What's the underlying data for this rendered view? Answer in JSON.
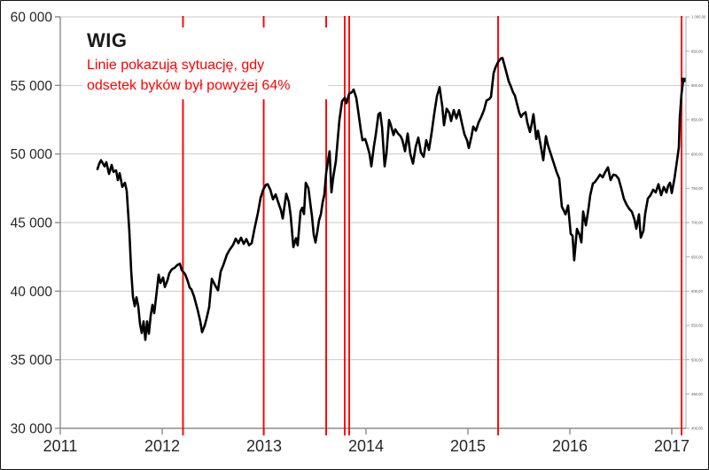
{
  "annotation": {
    "title": "WIG",
    "line1": "Linie pokazują sytuację, gdy",
    "line2": "odsetek byków był powyżej 64%"
  },
  "colors": {
    "series": "#000000",
    "signal": "#FF0000",
    "grid": "#C9C9C9",
    "axis": "#8C8C8C",
    "tick_text": "#262626",
    "right_axis": "#ABABAB",
    "right_axis_text": "#595959",
    "annotation_text": "#FF0000"
  },
  "chart_data": {
    "type": "line",
    "title": "WIG",
    "series_name": "WIG",
    "legend": "none",
    "grid": "horizontal",
    "xlim": [
      2011,
      2017.17
    ],
    "ylim": [
      30000,
      60000
    ],
    "x_axis": {
      "ticks": [
        {
          "value": 2011,
          "label": "2011"
        },
        {
          "value": 2012,
          "label": "2012"
        },
        {
          "value": 2013,
          "label": "2013"
        },
        {
          "value": 2014,
          "label": "2014"
        },
        {
          "value": 2015,
          "label": "2015"
        },
        {
          "value": 2016,
          "label": "2016"
        },
        {
          "value": 2017,
          "label": "2017"
        }
      ]
    },
    "y_axis": {
      "ticks": [
        {
          "value": 60000,
          "label": "60 000"
        },
        {
          "value": 55000,
          "label": "55 000"
        },
        {
          "value": 50000,
          "label": "50 000"
        },
        {
          "value": 45000,
          "label": "45 000"
        },
        {
          "value": 40000,
          "label": "40 000"
        },
        {
          "value": 35000,
          "label": "35 000"
        },
        {
          "value": 30000,
          "label": "30 000"
        }
      ]
    },
    "right_axis_labels": [
      "1 000,00",
      "950,00",
      "900,00",
      "850,00",
      "800,00",
      "750,00",
      "700,00",
      "650,00",
      "600,00",
      "550,00",
      "500,00",
      "450,00",
      "400,00"
    ],
    "signal_lines_note": "Linie pokazują sytuację, gdy odsetek byków był powyżej 64%",
    "signal_threshold": "64%",
    "signal_lines_x": [
      2012.204,
      2012.996,
      2013.609,
      2013.791,
      2013.835,
      2015.296,
      2017.096
    ],
    "points": [
      [
        2011.365,
        48900
      ],
      [
        2011.383,
        49300
      ],
      [
        2011.4,
        49550
      ],
      [
        2011.435,
        49100
      ],
      [
        2011.452,
        49400
      ],
      [
        2011.478,
        48550
      ],
      [
        2011.504,
        49200
      ],
      [
        2011.522,
        48700
      ],
      [
        2011.548,
        48800
      ],
      [
        2011.565,
        48100
      ],
      [
        2011.583,
        48600
      ],
      [
        2011.609,
        47600
      ],
      [
        2011.635,
        47900
      ],
      [
        2011.652,
        47300
      ],
      [
        2011.678,
        44300
      ],
      [
        2011.696,
        41500
      ],
      [
        2011.713,
        39600
      ],
      [
        2011.73,
        38900
      ],
      [
        2011.748,
        39550
      ],
      [
        2011.765,
        38900
      ],
      [
        2011.783,
        37600
      ],
      [
        2011.8,
        36950
      ],
      [
        2011.817,
        37800
      ],
      [
        2011.835,
        36450
      ],
      [
        2011.852,
        37800
      ],
      [
        2011.87,
        36900
      ],
      [
        2011.887,
        38200
      ],
      [
        2011.904,
        39000
      ],
      [
        2011.922,
        38400
      ],
      [
        2011.939,
        39500
      ],
      [
        2011.965,
        41200
      ],
      [
        2011.983,
        40600
      ],
      [
        2012.009,
        41000
      ],
      [
        2012.026,
        40300
      ],
      [
        2012.052,
        40800
      ],
      [
        2012.07,
        41300
      ],
      [
        2012.096,
        41600
      ],
      [
        2012.122,
        41700
      ],
      [
        2012.148,
        41900
      ],
      [
        2012.174,
        42000
      ],
      [
        2012.191,
        41550
      ],
      [
        2012.226,
        41230
      ],
      [
        2012.252,
        40700
      ],
      [
        2012.27,
        40260
      ],
      [
        2012.287,
        40130
      ],
      [
        2012.313,
        39610
      ],
      [
        2012.348,
        38640
      ],
      [
        2012.374,
        37790
      ],
      [
        2012.391,
        37010
      ],
      [
        2012.417,
        37500
      ],
      [
        2012.435,
        37990
      ],
      [
        2012.461,
        38830
      ],
      [
        2012.487,
        40900
      ],
      [
        2012.522,
        40390
      ],
      [
        2012.548,
        40065
      ],
      [
        2012.574,
        41430
      ],
      [
        2012.6,
        41900
      ],
      [
        2012.635,
        42660
      ],
      [
        2012.661,
        43000
      ],
      [
        2012.696,
        43380
      ],
      [
        2012.722,
        43830
      ],
      [
        2012.748,
        43500
      ],
      [
        2012.774,
        43900
      ],
      [
        2012.8,
        43450
      ],
      [
        2012.826,
        43800
      ],
      [
        2012.852,
        43350
      ],
      [
        2012.878,
        43500
      ],
      [
        2012.904,
        44500
      ],
      [
        2012.939,
        45700
      ],
      [
        2012.965,
        46800
      ],
      [
        2012.991,
        47400
      ],
      [
        2013.017,
        47750
      ],
      [
        2013.035,
        47800
      ],
      [
        2013.061,
        47400
      ],
      [
        2013.087,
        46700
      ],
      [
        2013.113,
        47050
      ],
      [
        2013.139,
        46470
      ],
      [
        2013.165,
        45900
      ],
      [
        2013.183,
        45300
      ],
      [
        2013.2,
        46200
      ],
      [
        2013.217,
        47100
      ],
      [
        2013.243,
        46500
      ],
      [
        2013.261,
        45500
      ],
      [
        2013.287,
        43210
      ],
      [
        2013.313,
        43860
      ],
      [
        2013.33,
        43340
      ],
      [
        2013.357,
        45820
      ],
      [
        2013.374,
        46080
      ],
      [
        2013.391,
        45620
      ],
      [
        2013.409,
        47900
      ],
      [
        2013.435,
        47500
      ],
      [
        2013.452,
        46470
      ],
      [
        2013.47,
        45420
      ],
      [
        2013.487,
        44120
      ],
      [
        2013.504,
        43550
      ],
      [
        2013.522,
        44320
      ],
      [
        2013.539,
        45170
      ],
      [
        2013.557,
        45620
      ],
      [
        2013.574,
        46470
      ],
      [
        2013.591,
        47050
      ],
      [
        2013.609,
        48600
      ],
      [
        2013.626,
        49500
      ],
      [
        2013.643,
        50200
      ],
      [
        2013.661,
        47200
      ],
      [
        2013.678,
        48300
      ],
      [
        2013.704,
        49500
      ],
      [
        2013.722,
        51000
      ],
      [
        2013.739,
        52500
      ],
      [
        2013.765,
        53850
      ],
      [
        2013.791,
        54100
      ],
      [
        2013.809,
        53700
      ],
      [
        2013.835,
        54400
      ],
      [
        2013.861,
        54500
      ],
      [
        2013.878,
        54700
      ],
      [
        2013.904,
        54100
      ],
      [
        2013.922,
        53200
      ],
      [
        2013.948,
        51800
      ],
      [
        2013.965,
        51000
      ],
      [
        2013.991,
        51100
      ],
      [
        2014.009,
        50700
      ],
      [
        2014.035,
        50000
      ],
      [
        2014.052,
        49100
      ],
      [
        2014.078,
        50600
      ],
      [
        2014.096,
        51400
      ],
      [
        2014.122,
        52900
      ],
      [
        2014.139,
        53000
      ],
      [
        2014.157,
        51950
      ],
      [
        2014.183,
        49100
      ],
      [
        2014.2,
        50000
      ],
      [
        2014.226,
        52480
      ],
      [
        2014.243,
        52130
      ],
      [
        2014.27,
        51380
      ],
      [
        2014.287,
        51800
      ],
      [
        2014.313,
        51500
      ],
      [
        2014.339,
        51300
      ],
      [
        2014.357,
        51000
      ],
      [
        2014.383,
        50200
      ],
      [
        2014.409,
        51500
      ],
      [
        2014.435,
        50000
      ],
      [
        2014.461,
        49300
      ],
      [
        2014.487,
        50500
      ],
      [
        2014.513,
        51200
      ],
      [
        2014.539,
        50100
      ],
      [
        2014.565,
        49800
      ],
      [
        2014.591,
        51000
      ],
      [
        2014.617,
        50300
      ],
      [
        2014.643,
        51500
      ],
      [
        2014.67,
        53000
      ],
      [
        2014.696,
        54200
      ],
      [
        2014.722,
        54870
      ],
      [
        2014.748,
        53500
      ],
      [
        2014.765,
        52100
      ],
      [
        2014.791,
        53300
      ],
      [
        2014.817,
        53000
      ],
      [
        2014.835,
        52400
      ],
      [
        2014.861,
        53200
      ],
      [
        2014.887,
        52600
      ],
      [
        2014.913,
        53200
      ],
      [
        2014.939,
        52300
      ],
      [
        2014.965,
        51450
      ],
      [
        2014.991,
        51000
      ],
      [
        2015.009,
        50430
      ],
      [
        2015.035,
        51300
      ],
      [
        2015.052,
        52000
      ],
      [
        2015.078,
        51700
      ],
      [
        2015.104,
        52300
      ],
      [
        2015.13,
        52700
      ],
      [
        2015.157,
        53200
      ],
      [
        2015.183,
        53900
      ],
      [
        2015.209,
        54000
      ],
      [
        2015.226,
        54170
      ],
      [
        2015.252,
        55900
      ],
      [
        2015.27,
        56300
      ],
      [
        2015.296,
        56700
      ],
      [
        2015.322,
        56960
      ],
      [
        2015.339,
        57000
      ],
      [
        2015.357,
        56500
      ],
      [
        2015.383,
        55800
      ],
      [
        2015.4,
        55300
      ],
      [
        2015.417,
        55000
      ],
      [
        2015.443,
        54500
      ],
      [
        2015.461,
        54250
      ],
      [
        2015.487,
        53500
      ],
      [
        2015.504,
        53000
      ],
      [
        2015.522,
        52700
      ],
      [
        2015.539,
        52900
      ],
      [
        2015.565,
        53050
      ],
      [
        2015.583,
        52300
      ],
      [
        2015.609,
        51600
      ],
      [
        2015.626,
        52200
      ],
      [
        2015.643,
        52900
      ],
      [
        2015.67,
        51100
      ],
      [
        2015.687,
        51700
      ],
      [
        2015.722,
        50300
      ],
      [
        2015.739,
        49550
      ],
      [
        2015.765,
        51300
      ],
      [
        2015.783,
        50700
      ],
      [
        2015.809,
        50100
      ],
      [
        2015.826,
        49700
      ],
      [
        2015.852,
        49100
      ],
      [
        2015.87,
        48700
      ],
      [
        2015.896,
        48200
      ],
      [
        2015.922,
        46150
      ],
      [
        2015.939,
        45900
      ],
      [
        2015.957,
        45600
      ],
      [
        2015.983,
        46250
      ],
      [
        2016.009,
        44170
      ],
      [
        2016.026,
        44050
      ],
      [
        2016.043,
        42250
      ],
      [
        2016.07,
        44540
      ],
      [
        2016.096,
        44100
      ],
      [
        2016.113,
        43560
      ],
      [
        2016.13,
        45800
      ],
      [
        2016.157,
        44800
      ],
      [
        2016.183,
        46000
      ],
      [
        2016.2,
        47000
      ],
      [
        2016.226,
        47850
      ],
      [
        2016.243,
        47920
      ],
      [
        2016.27,
        48200
      ],
      [
        2016.296,
        48500
      ],
      [
        2016.322,
        48300
      ],
      [
        2016.348,
        48700
      ],
      [
        2016.374,
        49025
      ],
      [
        2016.4,
        48100
      ],
      [
        2016.426,
        48500
      ],
      [
        2016.452,
        48440
      ],
      [
        2016.478,
        48200
      ],
      [
        2016.504,
        47500
      ],
      [
        2016.53,
        46750
      ],
      [
        2016.557,
        46300
      ],
      [
        2016.583,
        46000
      ],
      [
        2016.609,
        45780
      ],
      [
        2016.635,
        45200
      ],
      [
        2016.652,
        44550
      ],
      [
        2016.678,
        45600
      ],
      [
        2016.696,
        43900
      ],
      [
        2016.722,
        44400
      ],
      [
        2016.739,
        45650
      ],
      [
        2016.765,
        46750
      ],
      [
        2016.791,
        47000
      ],
      [
        2016.817,
        47400
      ],
      [
        2016.843,
        47200
      ],
      [
        2016.87,
        47800
      ],
      [
        2016.896,
        47000
      ],
      [
        2016.922,
        47600
      ],
      [
        2016.948,
        47200
      ],
      [
        2016.965,
        47700
      ],
      [
        2016.983,
        47900
      ],
      [
        2017.0,
        47150
      ],
      [
        2017.026,
        48200
      ],
      [
        2017.052,
        49550
      ],
      [
        2017.07,
        50500
      ],
      [
        2017.078,
        52600
      ],
      [
        2017.096,
        54400
      ],
      [
        2017.113,
        55400
      ]
    ]
  }
}
